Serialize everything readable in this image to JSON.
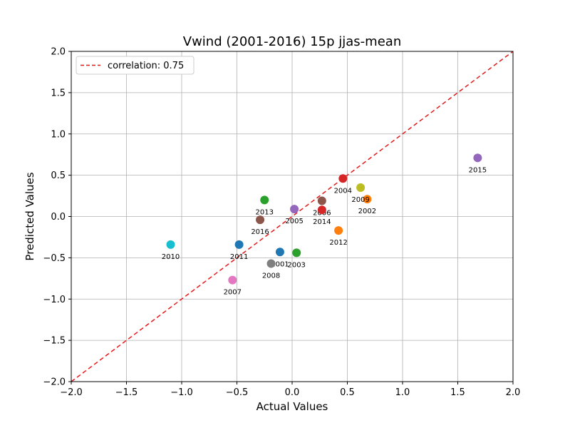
{
  "chart_data": {
    "type": "scatter",
    "title": "Vwind (2001-2016) 15p jjas-mean",
    "xlabel": "Actual Values",
    "ylabel": "Predicted Values",
    "xlim": [
      -2.0,
      2.0
    ],
    "ylim": [
      -2.0,
      2.0
    ],
    "xticks": [
      "−2.0",
      "−1.5",
      "−1.0",
      "−0.5",
      "0.0",
      "0.5",
      "1.0",
      "1.5",
      "2.0"
    ],
    "yticks": [
      "−2.0",
      "−1.5",
      "−1.0",
      "−0.5",
      "0.0",
      "0.5",
      "1.0",
      "1.5",
      "2.0"
    ],
    "grid": true,
    "legend": {
      "placement": "top-left",
      "label": "correlation: 0.75"
    },
    "reference_line": {
      "style": "dashed",
      "color": "#e31a1c",
      "from": [
        -2.0,
        -2.0
      ],
      "to": [
        2.0,
        2.0
      ]
    },
    "points": [
      {
        "label": "2001",
        "x": -0.11,
        "y": -0.43,
        "color": "#1f77b4"
      },
      {
        "label": "2002",
        "x": 0.68,
        "y": 0.21,
        "color": "#ff7f0e"
      },
      {
        "label": "2003",
        "x": 0.04,
        "y": -0.44,
        "color": "#2ca02c"
      },
      {
        "label": "2004",
        "x": 0.46,
        "y": 0.46,
        "color": "#d62728"
      },
      {
        "label": "2005",
        "x": 0.02,
        "y": 0.09,
        "color": "#9467bd"
      },
      {
        "label": "2006",
        "x": 0.27,
        "y": 0.19,
        "color": "#8c564b"
      },
      {
        "label": "2007",
        "x": -0.54,
        "y": -0.77,
        "color": "#e377c2"
      },
      {
        "label": "2008",
        "x": -0.19,
        "y": -0.57,
        "color": "#7f7f7f"
      },
      {
        "label": "2009",
        "x": 0.62,
        "y": 0.35,
        "color": "#bcbd22"
      },
      {
        "label": "2010",
        "x": -1.1,
        "y": -0.34,
        "color": "#17becf"
      },
      {
        "label": "2011",
        "x": -0.48,
        "y": -0.34,
        "color": "#1f77b4"
      },
      {
        "label": "2012",
        "x": 0.42,
        "y": -0.17,
        "color": "#ff7f0e"
      },
      {
        "label": "2013",
        "x": -0.25,
        "y": 0.2,
        "color": "#2ca02c"
      },
      {
        "label": "2014",
        "x": 0.27,
        "y": 0.08,
        "color": "#d62728"
      },
      {
        "label": "2015",
        "x": 1.68,
        "y": 0.71,
        "color": "#9467bd"
      },
      {
        "label": "2016",
        "x": -0.29,
        "y": -0.04,
        "color": "#8c564b"
      }
    ]
  }
}
